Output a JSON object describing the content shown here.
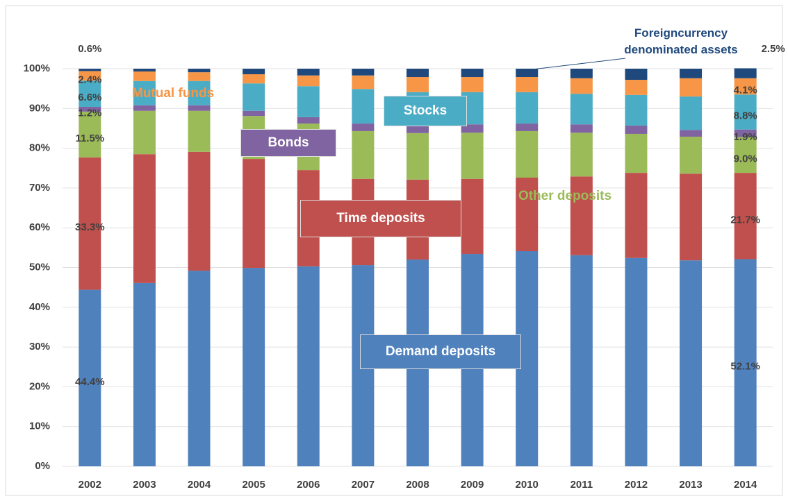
{
  "chart_data": {
    "type": "bar",
    "stacked": true,
    "categories": [
      "2002",
      "2003",
      "2004",
      "2005",
      "2006",
      "2007",
      "2008",
      "2009",
      "2010",
      "2011",
      "2012",
      "2013",
      "2014"
    ],
    "ylim": [
      0,
      100
    ],
    "yticks": [
      {
        "value": 0,
        "label": "0%"
      },
      {
        "value": 10,
        "label": "10%"
      },
      {
        "value": 20,
        "label": "20%"
      },
      {
        "value": 30,
        "label": "30%"
      },
      {
        "value": 40,
        "label": "40%"
      },
      {
        "value": 50,
        "label": "50%"
      },
      {
        "value": 60,
        "label": "60%"
      },
      {
        "value": 70,
        "label": "70%"
      },
      {
        "value": 80,
        "label": "80%"
      },
      {
        "value": 90,
        "label": "90%"
      },
      {
        "value": 100,
        "label": "100%"
      }
    ],
    "grid": true,
    "series": [
      {
        "name": "Demand deposits",
        "color": "#4f81bd",
        "values": [
          44.4,
          46.1,
          49.2,
          49.9,
          50.3,
          50.6,
          52.0,
          53.4,
          54.1,
          53.1,
          52.4,
          51.8,
          52.1
        ],
        "value_labels": [
          "44.4%",
          null,
          null,
          null,
          null,
          null,
          null,
          null,
          null,
          null,
          null,
          null,
          "52.1%"
        ]
      },
      {
        "name": "Time deposits",
        "color": "#c0504d",
        "values": [
          33.3,
          32.4,
          29.9,
          27.4,
          24.2,
          21.7,
          20.1,
          18.9,
          18.5,
          19.8,
          21.4,
          21.8,
          21.7
        ],
        "value_labels": [
          "33.3%",
          null,
          null,
          null,
          null,
          null,
          null,
          null,
          null,
          null,
          null,
          null,
          "21.7%"
        ]
      },
      {
        "name": "Other deposits",
        "color": "#9bbb59",
        "values": [
          11.5,
          10.9,
          10.3,
          10.8,
          11.7,
          12.0,
          11.7,
          11.6,
          11.7,
          11.0,
          9.8,
          9.3,
          9.0
        ],
        "value_labels": [
          "11.5%",
          null,
          null,
          null,
          null,
          null,
          null,
          null,
          null,
          null,
          null,
          null,
          "9.0%"
        ]
      },
      {
        "name": "Bonds",
        "color": "#8064a2",
        "values": [
          1.2,
          1.4,
          1.4,
          1.3,
          1.6,
          1.9,
          2.1,
          2.1,
          1.9,
          2.1,
          2.1,
          1.7,
          1.9
        ],
        "value_labels": [
          "1.2%",
          null,
          null,
          null,
          null,
          null,
          null,
          null,
          null,
          null,
          null,
          null,
          "1.9%"
        ]
      },
      {
        "name": "Stocks",
        "color": "#4bacc6",
        "values": [
          6.6,
          6.1,
          6.1,
          6.9,
          7.8,
          8.7,
          8.2,
          8.1,
          7.9,
          7.7,
          7.7,
          8.4,
          8.8
        ],
        "value_labels": [
          "6.6%",
          null,
          null,
          null,
          null,
          null,
          null,
          null,
          null,
          null,
          null,
          null,
          "8.8%"
        ]
      },
      {
        "name": "Mutual funds",
        "color": "#f79646",
        "values": [
          2.4,
          2.4,
          2.2,
          2.3,
          2.7,
          3.4,
          3.8,
          3.8,
          3.8,
          3.9,
          3.8,
          4.6,
          4.1
        ],
        "value_labels": [
          "2.4%",
          null,
          null,
          null,
          null,
          null,
          null,
          null,
          null,
          null,
          null,
          null,
          "4.1%"
        ]
      },
      {
        "name": "Foreigncurrency denominated assets",
        "color": "#1f497d",
        "values": [
          0.6,
          0.7,
          0.9,
          1.4,
          1.7,
          1.7,
          2.1,
          2.1,
          2.1,
          2.4,
          2.8,
          2.4,
          2.5
        ],
        "value_labels": [
          "0.6%",
          null,
          null,
          null,
          null,
          null,
          null,
          null,
          null,
          null,
          null,
          null,
          "2.5%"
        ]
      }
    ]
  }
}
